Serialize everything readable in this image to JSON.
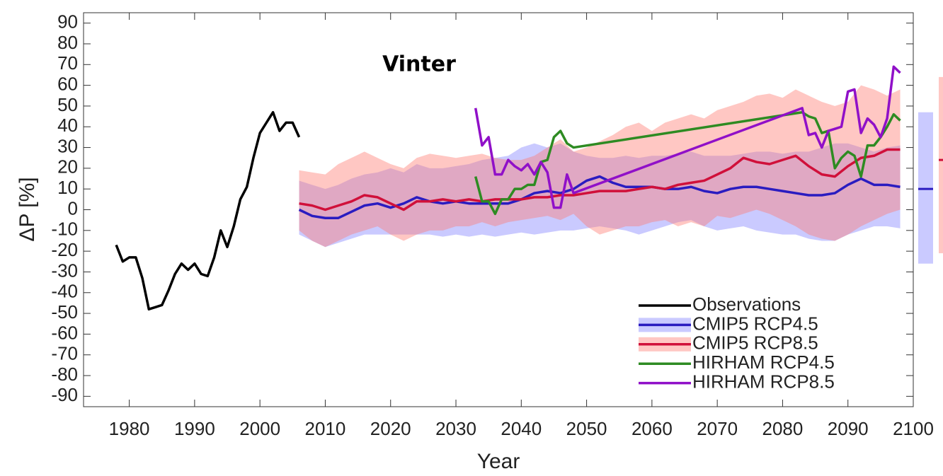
{
  "chart_data": {
    "type": "line",
    "title": "Vinter",
    "xlabel": "Year",
    "ylabel": "ΔP [%]",
    "xlim": [
      1973,
      2100
    ],
    "ylim": [
      -95,
      95
    ],
    "xticks": [
      1980,
      1990,
      2000,
      2010,
      2020,
      2030,
      2040,
      2050,
      2060,
      2070,
      2080,
      2090,
      2100
    ],
    "yticks": [
      -90,
      -80,
      -70,
      -60,
      -50,
      -40,
      -30,
      -20,
      -10,
      0,
      10,
      20,
      30,
      40,
      50,
      60,
      70,
      80,
      90
    ],
    "legend": "lower right",
    "series": [
      {
        "name": "Observations",
        "color": "#000000",
        "x": [
          1978,
          1979,
          1980,
          1981,
          1982,
          1983,
          1984,
          1985,
          1986,
          1987,
          1988,
          1989,
          1990,
          1991,
          1992,
          1993,
          1994,
          1995,
          1996,
          1997,
          1998,
          1999,
          2000,
          2001,
          2002,
          2003,
          2004,
          2005,
          2006
        ],
        "values": [
          -17,
          -25,
          -23,
          -23,
          -33,
          -48,
          -47,
          -46,
          -39,
          -31,
          -26,
          -29,
          -26,
          -31,
          -32,
          -23,
          -10,
          -18,
          -8,
          5,
          11,
          25,
          37,
          42,
          47,
          38,
          42,
          42,
          35
        ]
      },
      {
        "name": "CMIP5 RCP4.5",
        "color": "#2a1cc0",
        "band_color": "#8080ff",
        "x": [
          2006,
          2008,
          2010,
          2012,
          2014,
          2016,
          2018,
          2020,
          2022,
          2024,
          2026,
          2028,
          2030,
          2032,
          2034,
          2036,
          2038,
          2040,
          2042,
          2044,
          2046,
          2048,
          2050,
          2052,
          2054,
          2056,
          2058,
          2060,
          2062,
          2064,
          2066,
          2068,
          2070,
          2072,
          2074,
          2076,
          2078,
          2080,
          2082,
          2084,
          2086,
          2088,
          2090,
          2092,
          2094,
          2096,
          2098
        ],
        "values": [
          0,
          -3,
          -4,
          -4,
          -1,
          2,
          3,
          1,
          3,
          6,
          4,
          3,
          4,
          3,
          3,
          3,
          3,
          5,
          8,
          9,
          8,
          10,
          14,
          16,
          13,
          11,
          11,
          11,
          10,
          10,
          11,
          9,
          8,
          10,
          11,
          11,
          10,
          9,
          8,
          7,
          7,
          8,
          12,
          15,
          12,
          12,
          11
        ],
        "upper": [
          14,
          12,
          10,
          12,
          15,
          17,
          18,
          20,
          18,
          22,
          20,
          20,
          21,
          22,
          24,
          25,
          26,
          30,
          32,
          30,
          32,
          28,
          26,
          25,
          25,
          26,
          25,
          26,
          26,
          27,
          28,
          26,
          26,
          26,
          27,
          28,
          28,
          27,
          28,
          28,
          30,
          32,
          32,
          30,
          28,
          30,
          31
        ],
        "lower": [
          -12,
          -15,
          -18,
          -16,
          -14,
          -12,
          -12,
          -12,
          -12,
          -12,
          -12,
          -13,
          -12,
          -13,
          -12,
          -13,
          -12,
          -11,
          -12,
          -11,
          -10,
          -10,
          -9,
          -8,
          -9,
          -10,
          -12,
          -10,
          -8,
          -6,
          -5,
          -8,
          -10,
          -9,
          -8,
          -10,
          -11,
          -12,
          -12,
          -14,
          -15,
          -15,
          -12,
          -10,
          -8,
          -8,
          -9
        ],
        "end_range": [
          -26,
          10,
          47
        ]
      },
      {
        "name": "CMIP5 RCP8.5",
        "color": "#d0103a",
        "band_color": "#ff7a70",
        "x": [
          2006,
          2008,
          2010,
          2012,
          2014,
          2016,
          2018,
          2020,
          2022,
          2024,
          2026,
          2028,
          2030,
          2032,
          2034,
          2036,
          2038,
          2040,
          2042,
          2044,
          2046,
          2048,
          2050,
          2052,
          2054,
          2056,
          2058,
          2060,
          2062,
          2064,
          2066,
          2068,
          2070,
          2072,
          2074,
          2076,
          2078,
          2080,
          2082,
          2084,
          2086,
          2088,
          2090,
          2092,
          2094,
          2096,
          2098
        ],
        "values": [
          3,
          2,
          0,
          2,
          4,
          7,
          6,
          3,
          0,
          4,
          4,
          5,
          4,
          5,
          4,
          5,
          5,
          5,
          6,
          6,
          7,
          7,
          8,
          9,
          9,
          9,
          10,
          11,
          10,
          12,
          13,
          14,
          17,
          20,
          25,
          23,
          22,
          24,
          26,
          21,
          17,
          16,
          21,
          25,
          26,
          29,
          29
        ],
        "upper": [
          19,
          18,
          17,
          22,
          25,
          28,
          25,
          22,
          20,
          25,
          27,
          26,
          25,
          26,
          27,
          25,
          24,
          24,
          26,
          30,
          34,
          28,
          30,
          33,
          36,
          40,
          42,
          38,
          42,
          44,
          46,
          44,
          48,
          50,
          52,
          55,
          56,
          54,
          58,
          55,
          52,
          50,
          52,
          60,
          58,
          55,
          58
        ],
        "lower": [
          -10,
          -15,
          -18,
          -15,
          -12,
          -10,
          -8,
          -12,
          -15,
          -12,
          -10,
          -10,
          -8,
          -8,
          -6,
          -8,
          -6,
          -5,
          -4,
          -3,
          -5,
          -2,
          -8,
          -12,
          -10,
          -8,
          -8,
          -6,
          -5,
          -8,
          -6,
          -8,
          -3,
          -4,
          -2,
          0,
          -2,
          -5,
          -8,
          -12,
          -14,
          -15,
          -12,
          -8,
          -5,
          -2,
          0
        ],
        "end_range": [
          -21,
          24,
          64
        ]
      },
      {
        "name": "HIRHAM RCP4.5",
        "color": "#2e8b22",
        "x": [
          2033,
          2034,
          2035,
          2036,
          2037,
          2038,
          2039,
          2040,
          2041,
          2042,
          2043,
          2044,
          2045,
          2046,
          2047,
          2048,
          2083,
          2084,
          2085,
          2086,
          2087,
          2088,
          2089,
          2090,
          2091,
          2092,
          2093,
          2094,
          2095,
          2096,
          2097,
          2098
        ],
        "values": [
          16,
          4,
          4,
          -2,
          5,
          5,
          10,
          10,
          12,
          12,
          23,
          24,
          35,
          38,
          32,
          30,
          47,
          45,
          44,
          37,
          38,
          20,
          25,
          28,
          26,
          16,
          31,
          31,
          35,
          40,
          46,
          43
        ]
      },
      {
        "name": "HIRHAM RCP8.5",
        "color": "#9010c8",
        "x": [
          2033,
          2034,
          2035,
          2036,
          2037,
          2038,
          2039,
          2040,
          2041,
          2042,
          2043,
          2044,
          2045,
          2046,
          2047,
          2048,
          2083,
          2084,
          2085,
          2086,
          2087,
          2088,
          2089,
          2090,
          2091,
          2092,
          2093,
          2094,
          2095,
          2096,
          2097,
          2098
        ],
        "values": [
          49,
          31,
          35,
          17,
          17,
          24,
          21,
          19,
          22,
          17,
          23,
          18,
          1,
          1,
          17,
          8,
          49,
          36,
          37,
          30,
          38,
          39,
          40,
          57,
          58,
          37,
          44,
          41,
          35,
          44,
          69,
          66
        ]
      }
    ]
  }
}
